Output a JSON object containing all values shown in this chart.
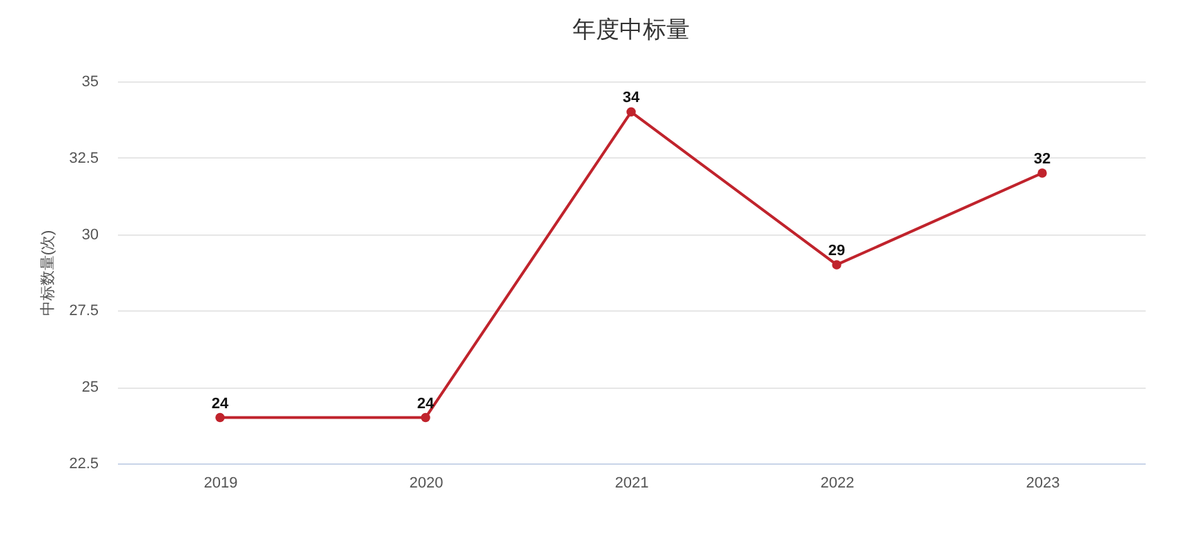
{
  "chart_data": {
    "type": "line",
    "title": "年度中标量",
    "ylabel": "中标数量(次)",
    "categories": [
      "2019",
      "2020",
      "2021",
      "2022",
      "2023"
    ],
    "series": [
      {
        "color": "#c0232c",
        "values": [
          24,
          24,
          34,
          29,
          32
        ]
      }
    ],
    "ylim": [
      22.5,
      35
    ],
    "yticks": [
      22.5,
      25,
      27.5,
      30,
      32.5,
      35
    ],
    "grid": "y",
    "marker": "circle",
    "line_style": "solid",
    "data_labels": true,
    "legend": false
  }
}
